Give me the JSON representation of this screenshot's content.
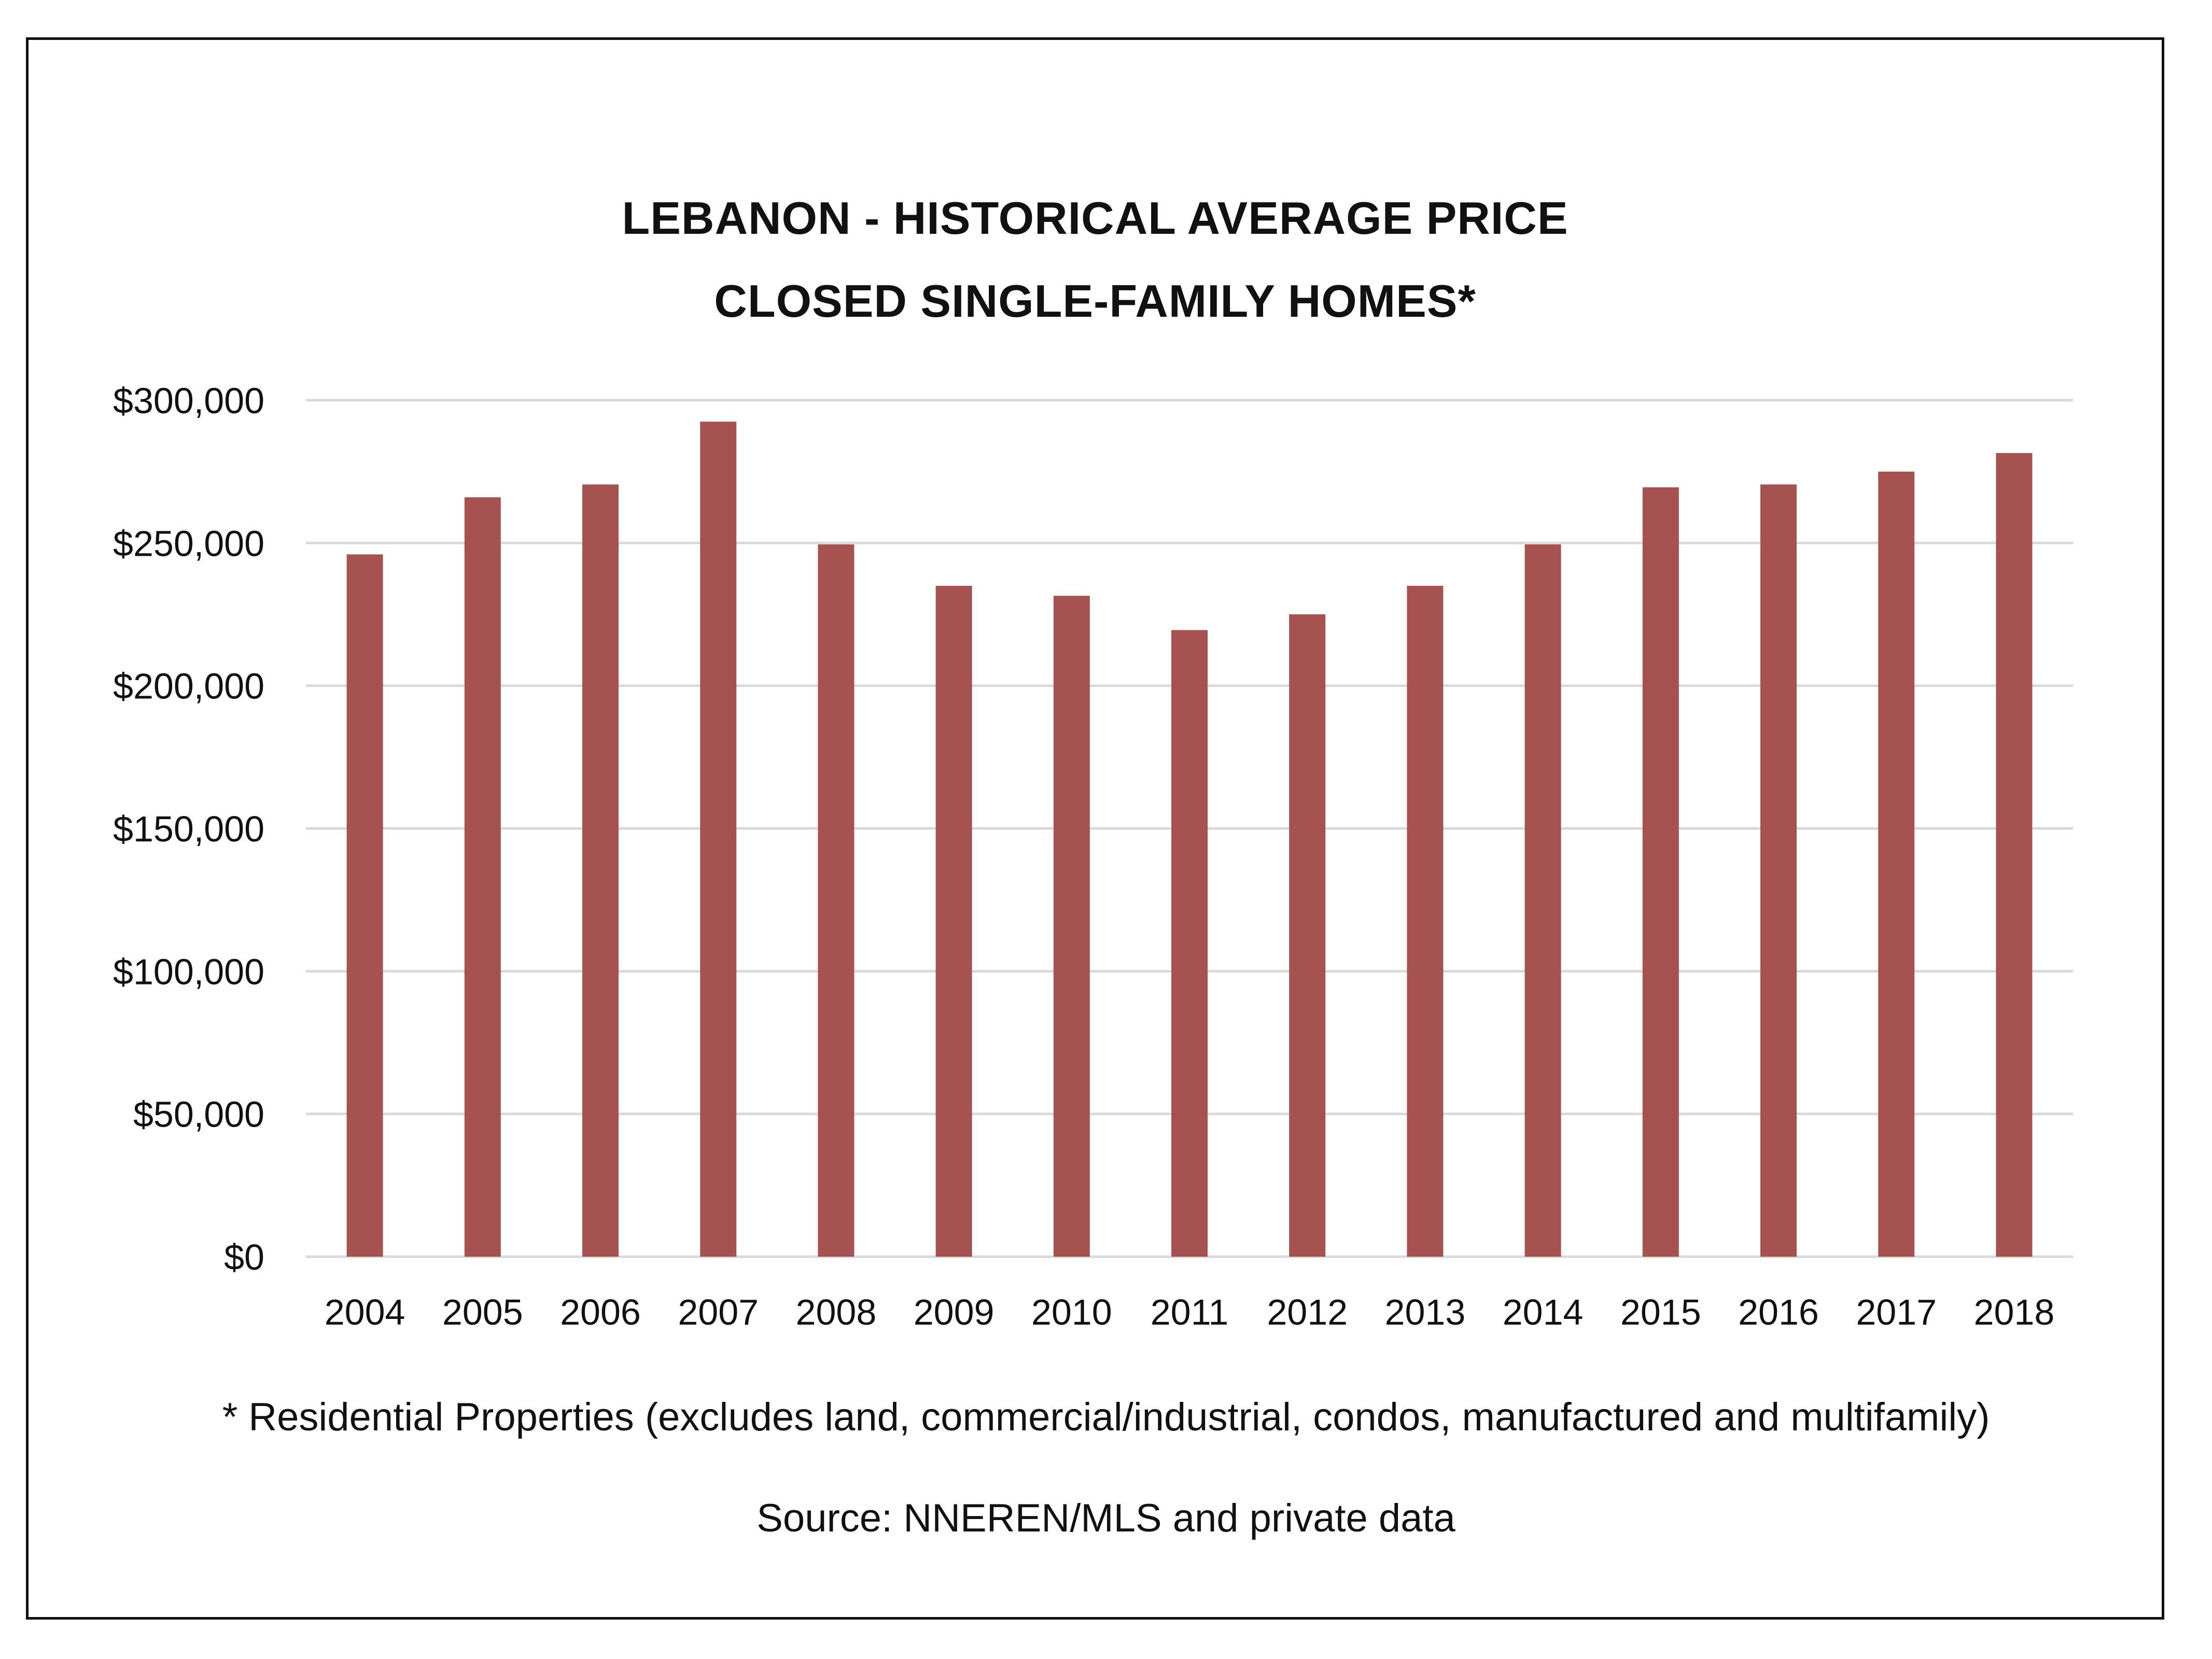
{
  "chart_data": {
    "type": "bar",
    "title_lines": [
      "LEBANON - HISTORICAL AVERAGE PRICE",
      "CLOSED SINGLE-FAMILY HOMES*"
    ],
    "categories": [
      "2004",
      "2005",
      "2006",
      "2007",
      "2008",
      "2009",
      "2010",
      "2011",
      "2012",
      "2013",
      "2014",
      "2015",
      "2016",
      "2017",
      "2018"
    ],
    "values": [
      246000,
      266000,
      270500,
      292500,
      249500,
      235000,
      231500,
      219500,
      225000,
      235000,
      249500,
      269500,
      270500,
      275000,
      281500
    ],
    "ylim": [
      0,
      300000
    ],
    "yticks": [
      0,
      50000,
      100000,
      150000,
      200000,
      250000,
      300000
    ],
    "ytick_labels": [
      "$0",
      "$50,000",
      "$100,000",
      "$150,000",
      "$200,000",
      "$250,000",
      "$300,000"
    ],
    "grid": true,
    "bar_color": "#a65250",
    "grid_color": "#d9d9d9"
  },
  "footnote": "* Residential Properties (excludes land, commercial/industrial, condos, manufactured and multifamily)",
  "source": "Source: NNEREN/MLS and private data"
}
